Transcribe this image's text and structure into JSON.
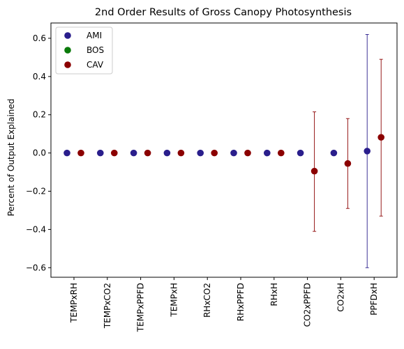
{
  "chart_data": {
    "type": "scatter",
    "title": "2nd Order Results of Gross Canopy Photosynthesis",
    "ylabel": "Percent of Output Explained",
    "xlabel": "",
    "categories": [
      "TEMPxRH",
      "TEMPxCO2",
      "TEMPxPPFD",
      "TEMPxH",
      "RHxCO2",
      "RHxPPFD",
      "RHxH",
      "CO2xPPFD",
      "CO2xH",
      "PPFDxH"
    ],
    "ylim": [
      -0.65,
      0.68
    ],
    "yticks": [
      "0.6",
      "0.4",
      "0.2",
      "0.0",
      "−0.2",
      "−0.4",
      "−0.6"
    ],
    "ytick_values": [
      0.6,
      0.4,
      0.2,
      0.0,
      -0.2,
      -0.4,
      -0.6
    ],
    "grid": false,
    "legend_position": "top-left",
    "series": [
      {
        "name": "AMI",
        "color": "#2a1e8c",
        "values": [
          0.0,
          0.0,
          0.0,
          0.0,
          0.0,
          0.0,
          0.0,
          0.0,
          0.0,
          0.01
        ],
        "err_low": [
          0.0,
          0.0,
          0.0,
          0.0,
          0.0,
          0.0,
          0.0,
          0.0,
          0.0,
          -0.6
        ],
        "err_high": [
          0.0,
          0.0,
          0.0,
          0.0,
          0.0,
          0.0,
          0.0,
          0.0,
          0.0,
          0.62
        ]
      },
      {
        "name": "BOS",
        "color": "#0a7a0a",
        "values": [],
        "err_low": [],
        "err_high": []
      },
      {
        "name": "CAV",
        "color": "#8b0000",
        "values": [
          0.0,
          0.0,
          0.0,
          0.0,
          0.0,
          0.0,
          0.0,
          -0.095,
          -0.055,
          0.082
        ],
        "err_low": [
          0.0,
          0.0,
          0.0,
          0.0,
          0.0,
          0.0,
          0.0,
          -0.41,
          -0.29,
          -0.33
        ],
        "err_high": [
          0.0,
          0.0,
          0.0,
          0.0,
          0.0,
          0.0,
          0.0,
          0.215,
          0.18,
          0.49
        ]
      }
    ]
  }
}
